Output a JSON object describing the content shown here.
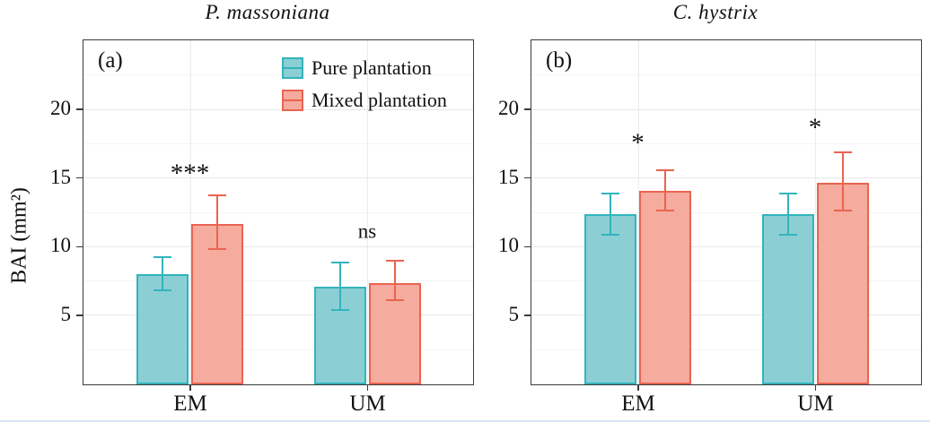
{
  "figure": {
    "ylabel": "BAI (mm²)"
  },
  "legend": {
    "location": "inside panel (a), top-right",
    "items": [
      {
        "label": "Pure plantation",
        "fill": "#8BCFD4",
        "stroke": "#32B4BC"
      },
      {
        "label": "Mixed plantation",
        "fill": "#F5AB9E",
        "stroke": "#E96450"
      }
    ]
  },
  "chart_data": [
    {
      "type": "bar",
      "panel_label": "(a)",
      "title": "P. massoniana",
      "categories": [
        "EM",
        "UM"
      ],
      "series": [
        {
          "name": "Pure plantation",
          "fill": "#8BCFD4",
          "stroke": "#32B4BC",
          "values": [
            8.0,
            7.1
          ],
          "err_low": [
            6.7,
            5.3
          ],
          "err_high": [
            9.3,
            8.9
          ]
        },
        {
          "name": "Mixed plantation",
          "fill": "#F5AB9E",
          "stroke": "#E96450",
          "values": [
            11.7,
            7.4
          ],
          "err_low": [
            9.7,
            6.0
          ],
          "err_high": [
            13.8,
            9.0
          ]
        }
      ],
      "significance": [
        {
          "category": "EM",
          "label": "***",
          "y": 15.3
        },
        {
          "category": "UM",
          "label": "ns",
          "y": 11.1
        }
      ],
      "ylabel": "BAI (mm²)",
      "ylim": [
        0,
        25
      ],
      "yticks": [
        5,
        10,
        15,
        20
      ],
      "minor_step": 2.5,
      "grid": "horizontal major+minor, vertical major at categories",
      "legend_in_panel": true
    },
    {
      "type": "bar",
      "panel_label": "(b)",
      "title": "C. hystrix",
      "categories": [
        "EM",
        "UM"
      ],
      "series": [
        {
          "name": "Pure plantation",
          "fill": "#8BCFD4",
          "stroke": "#32B4BC",
          "values": [
            12.4,
            12.4
          ],
          "err_low": [
            10.8,
            10.8
          ],
          "err_high": [
            13.9,
            13.9
          ]
        },
        {
          "name": "Mixed plantation",
          "fill": "#F5AB9E",
          "stroke": "#E96450",
          "values": [
            14.1,
            14.7
          ],
          "err_low": [
            12.5,
            12.5
          ],
          "err_high": [
            15.6,
            16.9
          ]
        }
      ],
      "significance": [
        {
          "category": "EM",
          "label": "*",
          "y": 17.5
        },
        {
          "category": "UM",
          "label": "*",
          "y": 18.6
        }
      ],
      "ylabel": "BAI (mm²)",
      "ylim": [
        0,
        25
      ],
      "yticks": [
        5,
        10,
        15,
        20
      ],
      "minor_step": 2.5,
      "grid": "horizontal major+minor, vertical major at categories",
      "legend_in_panel": false
    }
  ]
}
